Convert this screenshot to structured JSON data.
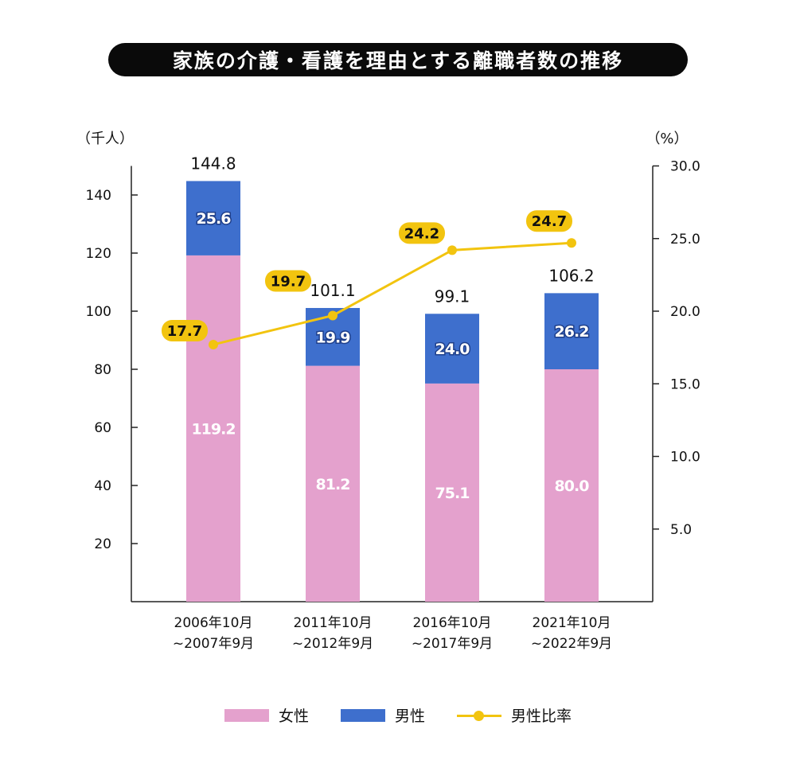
{
  "title": "家族の介護・看護を理由とする離職者数の推移",
  "chart_data": {
    "type": "bar",
    "stacked": true,
    "left_axis": {
      "unit_label": "（千人）",
      "range": [
        0,
        150
      ],
      "ticks": [
        20,
        40,
        60,
        80,
        100,
        120,
        140
      ]
    },
    "right_axis": {
      "unit_label": "（%）",
      "range": [
        0,
        30
      ],
      "ticks": [
        "5.0",
        "10.0",
        "15.0",
        "20.0",
        "25.0",
        "30.0"
      ]
    },
    "categories": [
      [
        "2006年10月",
        "~2007年9月"
      ],
      [
        "2011年10月",
        "~2012年9月"
      ],
      [
        "2016年10月",
        "~2017年9月"
      ],
      [
        "2021年10月",
        "~2022年9月"
      ]
    ],
    "series": [
      {
        "name": "女性",
        "values": [
          119.2,
          81.2,
          75.1,
          80.0
        ],
        "labels": [
          "119.2",
          "81.2",
          "75.1",
          "80.0"
        ],
        "color": "#e4a1cd"
      },
      {
        "name": "男性",
        "values": [
          25.6,
          19.9,
          24.0,
          26.2
        ],
        "labels": [
          "25.6",
          "19.9",
          "24.0",
          "26.2"
        ],
        "color": "#3e6fcd"
      }
    ],
    "totals": [
      "144.8",
      "101.1",
      "99.1",
      "106.2"
    ],
    "line_series": {
      "name": "男性比率",
      "values": [
        17.7,
        19.7,
        24.2,
        24.7
      ],
      "labels": [
        "17.7",
        "19.7",
        "24.2",
        "24.7"
      ],
      "color": "#f2c40f",
      "axis": "right"
    }
  },
  "legend": {
    "female": "女性",
    "male": "男性",
    "ratio": "男性比率"
  }
}
